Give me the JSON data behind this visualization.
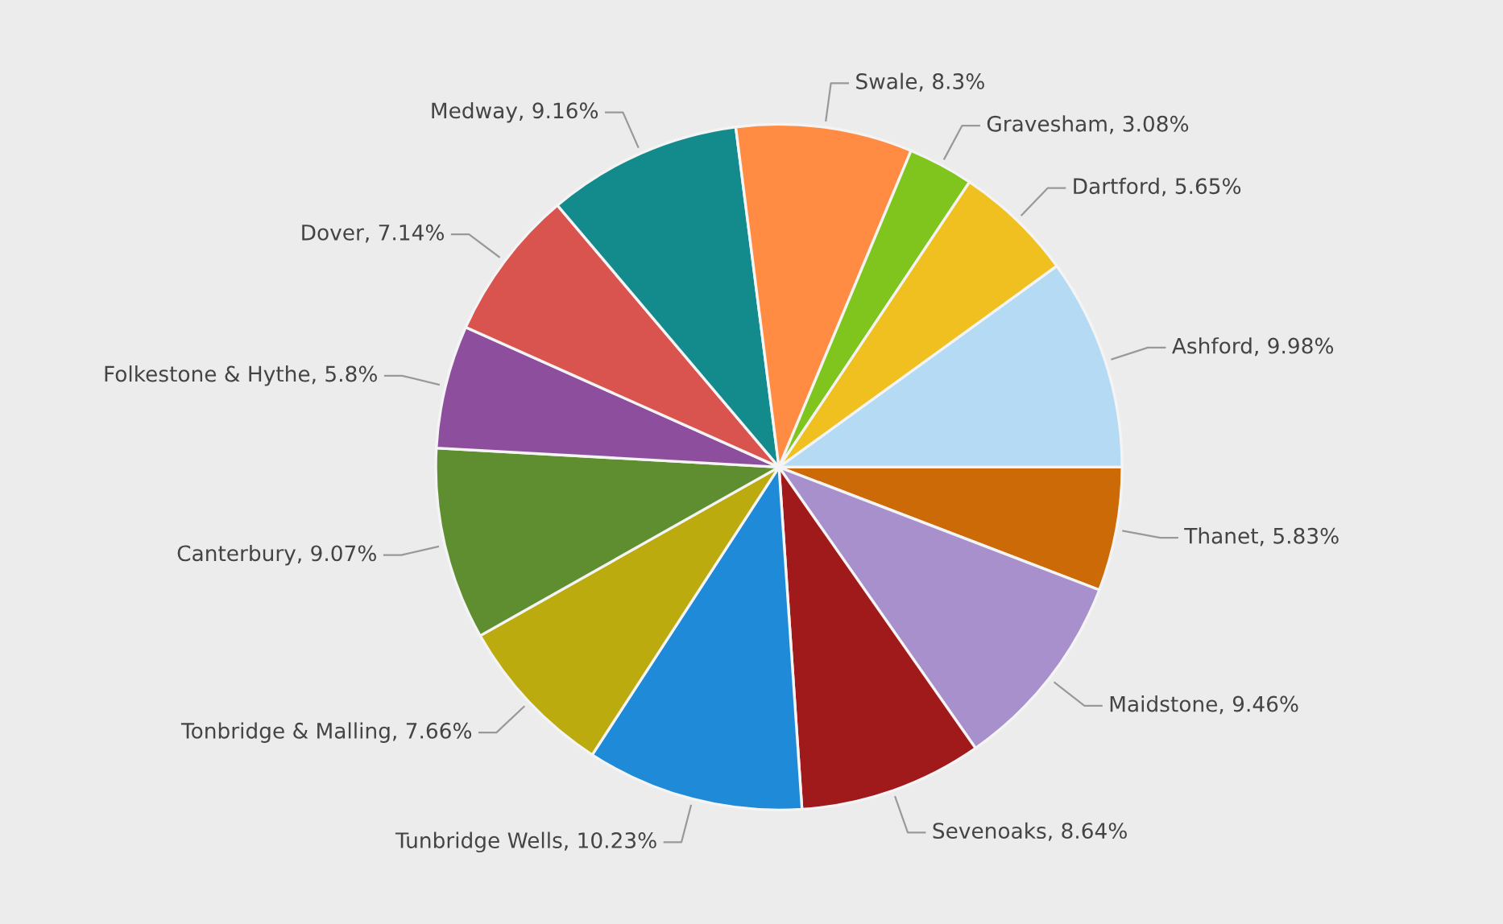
{
  "chart_data": {
    "type": "pie",
    "categories": [
      "Ashford",
      "Thanet",
      "Maidstone",
      "Sevenoaks",
      "Tunbridge Wells",
      "Tonbridge & Malling",
      "Canterbury",
      "Folkestone & Hythe",
      "Dover",
      "Medway",
      "Swale",
      "Gravesham",
      "Dartford"
    ],
    "values": [
      9.98,
      5.83,
      9.46,
      8.64,
      10.23,
      7.66,
      9.07,
      5.8,
      7.14,
      9.16,
      8.3,
      3.08,
      5.65
    ],
    "value_labels": [
      "9.98%",
      "5.83%",
      "9.46%",
      "8.64%",
      "10.23%",
      "7.66%",
      "9.07%",
      "5.8%",
      "7.14%",
      "9.16%",
      "8.3%",
      "3.08%",
      "5.65%"
    ],
    "colors": [
      "#b5dbf4",
      "#cc6a08",
      "#a890cc",
      "#a01a1c",
      "#1e8ad8",
      "#bcab0e",
      "#5e8e30",
      "#8e4e9e",
      "#d9534f",
      "#138a8c",
      "#ff8c42",
      "#80c41e",
      "#f0c020"
    ]
  }
}
